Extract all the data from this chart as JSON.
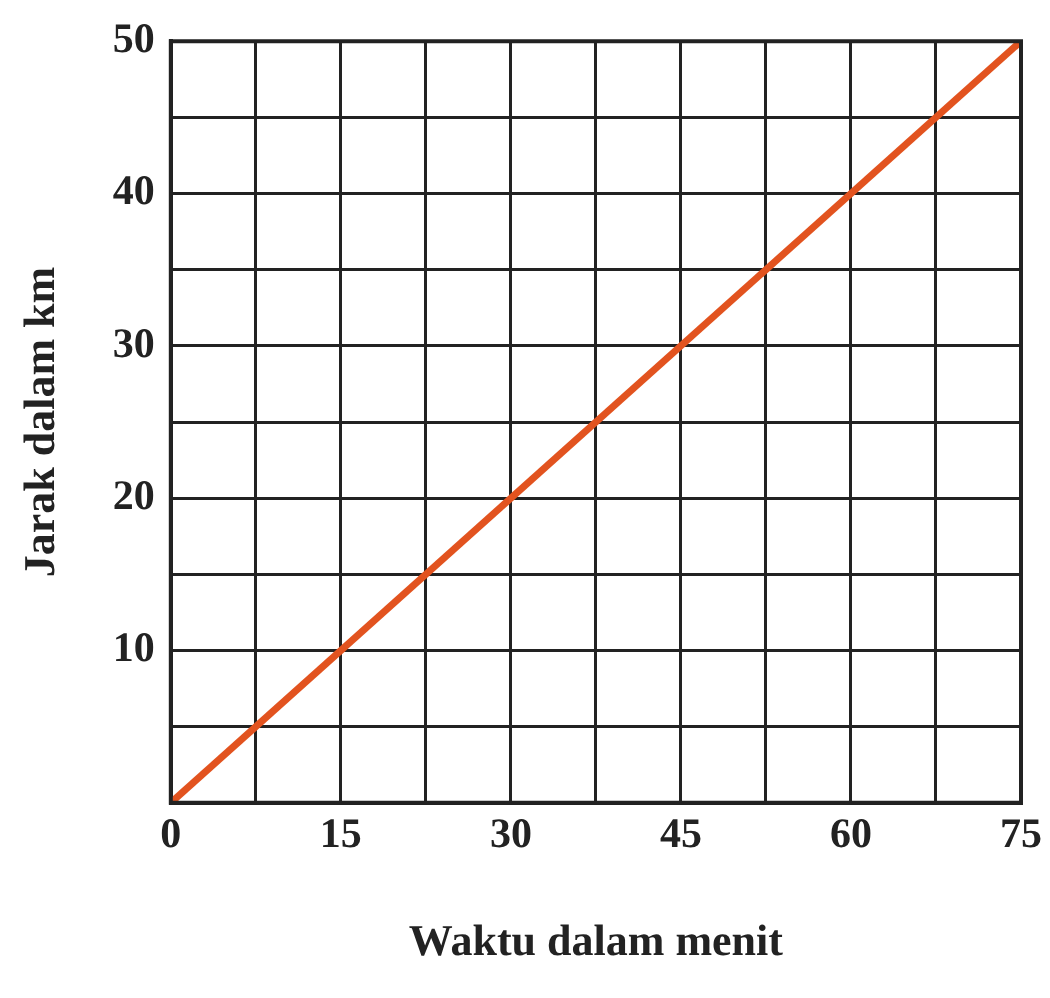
{
  "chart_data": {
    "type": "line",
    "xlabel": "Waktu dalam menit",
    "ylabel": "Jarak dalam km",
    "x": [
      0,
      75
    ],
    "series": [
      {
        "color": "#e2531f",
        "values": [
          0,
          50
        ]
      }
    ],
    "xlim": [
      0,
      75
    ],
    "ylim": [
      0,
      50
    ],
    "xticks": [
      0,
      {
        "value": 7.5,
        "label": null
      },
      15,
      {
        "value": 22.5,
        "label": null
      },
      30,
      {
        "value": 37.5,
        "label": null
      },
      45,
      {
        "value": 52.5,
        "label": null
      },
      60,
      {
        "value": 67.5,
        "label": null
      },
      75
    ],
    "yticks": [
      {
        "value": 0,
        "label": null
      },
      {
        "value": 5,
        "label": null
      },
      10,
      {
        "value": 15,
        "label": null
      },
      20,
      {
        "value": 25,
        "label": null
      },
      30,
      {
        "value": 35,
        "label": null
      },
      40,
      {
        "value": 45,
        "label": null
      },
      50
    ],
    "grid": true,
    "legend": false,
    "marker": "none",
    "line_style": "solid"
  }
}
